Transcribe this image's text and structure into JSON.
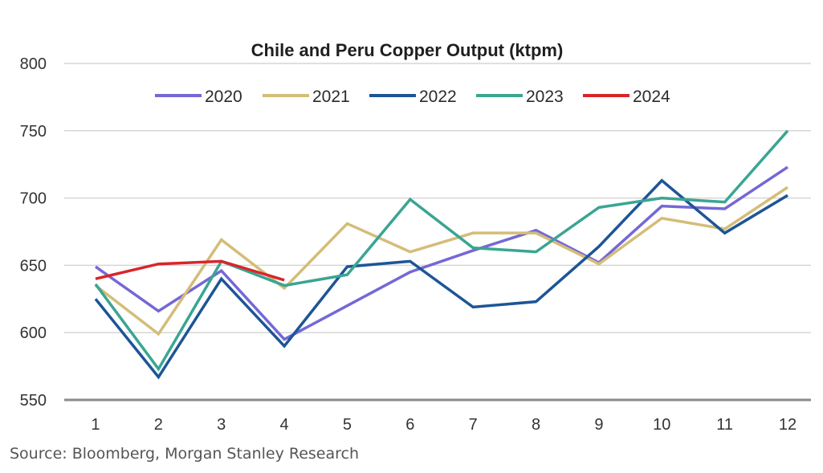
{
  "chart_data": {
    "type": "line",
    "title": "Chile and Peru Copper Output (ktpm)",
    "xlabel": "",
    "ylabel": "",
    "x": [
      1,
      2,
      3,
      4,
      5,
      6,
      7,
      8,
      9,
      10,
      11,
      12
    ],
    "x_tick_labels": [
      "1",
      "2",
      "3",
      "4",
      "5",
      "6",
      "7",
      "8",
      "9",
      "10",
      "11",
      "12"
    ],
    "ylim": [
      550,
      800
    ],
    "y_ticks": [
      550,
      600,
      650,
      700,
      750,
      800
    ],
    "grid": "horizontal",
    "legend_position": "top-center",
    "series": [
      {
        "name": "2020",
        "color": "#7468d6",
        "values": [
          649,
          616,
          646,
          595,
          620,
          645,
          661,
          676,
          652,
          694,
          692,
          723
        ]
      },
      {
        "name": "2021",
        "color": "#d4bd78",
        "values": [
          635,
          599,
          669,
          633,
          681,
          660,
          674,
          674,
          651,
          685,
          677,
          708
        ]
      },
      {
        "name": "2022",
        "color": "#1d5596",
        "values": [
          625,
          567,
          640,
          590,
          649,
          653,
          619,
          623,
          664,
          713,
          674,
          702
        ]
      },
      {
        "name": "2023",
        "color": "#3aa592",
        "values": [
          636,
          573,
          653,
          635,
          643,
          699,
          663,
          660,
          693,
          700,
          697,
          750
        ]
      },
      {
        "name": "2024",
        "color": "#d7262b",
        "values": [
          640,
          651,
          653,
          639
        ]
      }
    ]
  },
  "source": "Source: Bloomberg, Morgan Stanley Research"
}
